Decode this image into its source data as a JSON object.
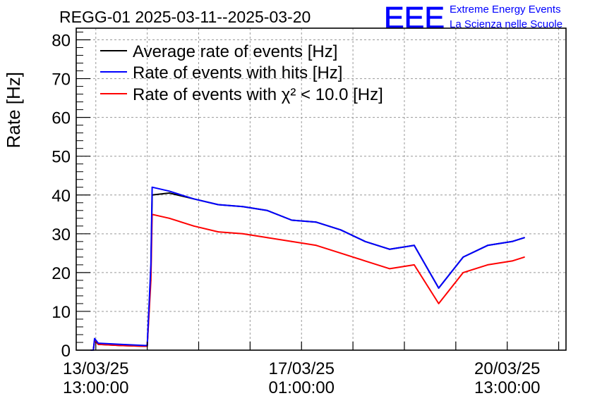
{
  "chart_data": {
    "type": "line",
    "title": "REGG-01 2025-03-11--2025-03-20",
    "xlabel": "",
    "ylabel": "Rate [Hz]",
    "ylim": [
      0,
      83
    ],
    "yticks": [
      0,
      10,
      20,
      30,
      40,
      50,
      60,
      70,
      80
    ],
    "x_unit": "hours since 13/03/25 13:00:00",
    "xlim": [
      -8,
      192
    ],
    "xticks": [
      {
        "x": 0,
        "date": "13/03/25",
        "time": "13:00:00"
      },
      {
        "x": 84,
        "date": "17/03/25",
        "time": "01:00:00"
      },
      {
        "x": 168,
        "date": "20/03/25",
        "time": "13:00:00"
      }
    ],
    "grid": true,
    "legend_position": "top-left",
    "series": [
      {
        "name": "Average rate of events [Hz]",
        "color": "#000000",
        "x": [
          -2,
          -1,
          -0.5,
          1,
          10,
          20,
          21,
          22.5,
          23,
          30,
          40,
          50,
          60,
          70,
          80,
          90,
          100,
          110,
          120,
          130,
          140,
          150,
          160,
          170,
          175
        ],
        "values": [
          0,
          0,
          2.5,
          1.5,
          1.2,
          1.0,
          1.0,
          20,
          40,
          40.5,
          39,
          37.5,
          37,
          36,
          33.5,
          33,
          31,
          28,
          26,
          27,
          16,
          24,
          27,
          28,
          29
        ]
      },
      {
        "name": "Rate of events with hits [Hz]",
        "color": "#0000ff",
        "x": [
          -2,
          -1,
          -0.5,
          1,
          10,
          20,
          21,
          22.5,
          23,
          30,
          40,
          50,
          60,
          70,
          80,
          90,
          100,
          110,
          120,
          130,
          140,
          150,
          160,
          170,
          175
        ],
        "values": [
          0,
          0,
          3,
          1.8,
          1.5,
          1.2,
          1.2,
          22,
          42,
          41,
          39,
          37.5,
          37,
          36,
          33.5,
          33,
          31,
          28,
          26,
          27,
          16,
          24,
          27,
          28,
          29
        ]
      },
      {
        "name": "Rate of events with χ² < 10.0 [Hz]",
        "color": "#ff0000",
        "x": [
          -2,
          -1,
          -0.5,
          1,
          10,
          20,
          21,
          22.5,
          23,
          30,
          40,
          50,
          60,
          70,
          80,
          90,
          100,
          110,
          120,
          130,
          140,
          150,
          160,
          170,
          175
        ],
        "values": [
          0,
          0,
          2.5,
          1.5,
          1.2,
          1.0,
          1.0,
          18,
          35,
          34,
          32,
          30.5,
          30,
          29,
          28,
          27,
          25,
          23,
          21,
          22,
          12,
          20,
          22,
          23,
          24
        ]
      }
    ]
  },
  "branding": {
    "logo": "EEE",
    "line1": "Extreme Energy Events",
    "line2": "La Scienza nelle Scuole",
    "color": "#0000ff"
  }
}
